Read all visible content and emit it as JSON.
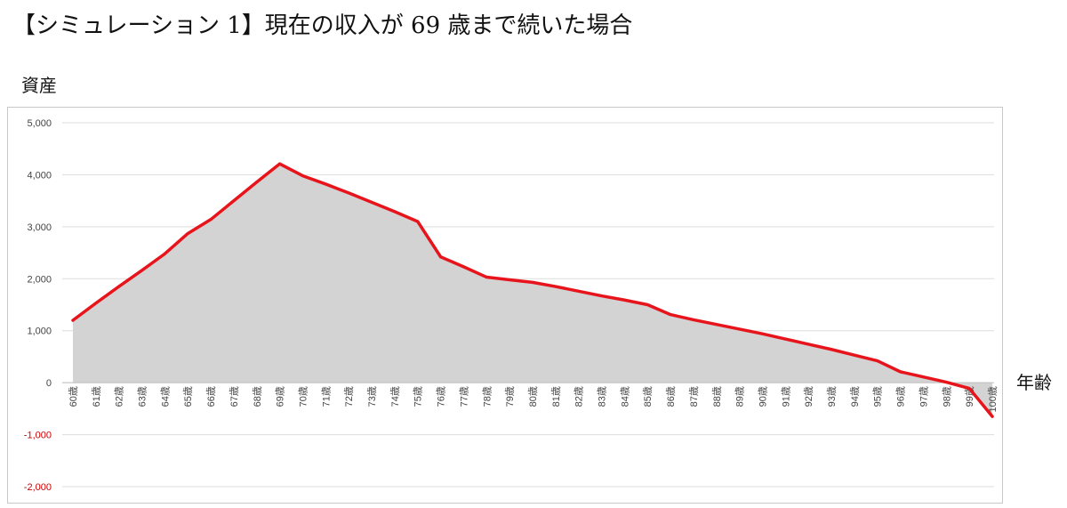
{
  "title": "【シミュレーション 1】現在の収入が 69 歳まで続いた場合",
  "colors": {
    "line": "#e8141c",
    "area": "#d3d3d3",
    "grid": "#dddddd",
    "negative_tick": "#cc0000",
    "tick": "#444444"
  },
  "chart_data": {
    "type": "area",
    "title": "",
    "ylabel": "資産",
    "xlabel": "年齢",
    "ylim": [
      -2000,
      5000
    ],
    "yticks": [
      5000,
      4000,
      3000,
      2000,
      1000,
      0,
      -1000,
      -2000
    ],
    "ytick_labels": [
      "5,000",
      "4,000",
      "3,000",
      "2,000",
      "1,000",
      "0",
      "-1,000",
      "-2,000"
    ],
    "grid": true,
    "categories": [
      "60歳",
      "61歳",
      "62歳",
      "63歳",
      "64歳",
      "65歳",
      "66歳",
      "67歳",
      "68歳",
      "69歳",
      "70歳",
      "71歳",
      "72歳",
      "73歳",
      "74歳",
      "75歳",
      "76歳",
      "77歳",
      "78歳",
      "79歳",
      "80歳",
      "81歳",
      "82歳",
      "83歳",
      "84歳",
      "85歳",
      "86歳",
      "87歳",
      "88歳",
      "89歳",
      "90歳",
      "91歳",
      "92歳",
      "93歳",
      "94歳",
      "95歳",
      "96歳",
      "97歳",
      "98歳",
      "99歳",
      "100歳"
    ],
    "values": [
      1200,
      1530,
      1850,
      2160,
      2480,
      2870,
      3140,
      3500,
      3860,
      4210,
      3980,
      3820,
      3650,
      3470,
      3290,
      3100,
      2420,
      2230,
      2030,
      1980,
      1930,
      1850,
      1760,
      1670,
      1590,
      1500,
      1310,
      1210,
      1120,
      1030,
      940,
      840,
      740,
      640,
      530,
      420,
      210,
      110,
      10,
      -110,
      -650
    ]
  }
}
